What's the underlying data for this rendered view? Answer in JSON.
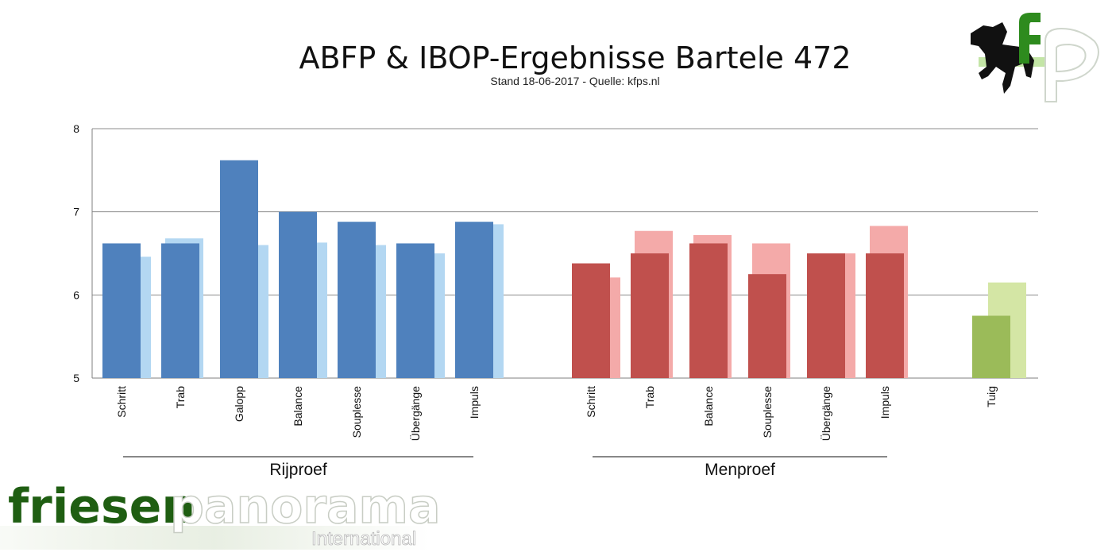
{
  "chart_data": {
    "type": "bar",
    "title": "ABFP & IBOP-Ergebnisse Bartele 472",
    "subtitle": "Stand 18-06-2017 - Quelle: kfps.nl",
    "ylim": [
      5,
      8
    ],
    "yticks": [
      5,
      6,
      7,
      8
    ],
    "grid": true,
    "groups": [
      {
        "label": "Rijproef",
        "color": "#4f81bd",
        "secondary_color": "#b3d7f2",
        "categories": [
          "Schritt",
          "Trab",
          "Galopp",
          "Balance",
          "Souplesse",
          "Übergänge",
          "Impuls"
        ],
        "values": [
          6.62,
          6.62,
          7.62,
          7.0,
          6.88,
          6.62,
          6.88
        ],
        "secondary_values": [
          6.46,
          6.68,
          6.6,
          6.63,
          6.6,
          6.5,
          6.85
        ]
      },
      {
        "label": "Menproef",
        "color": "#c0504d",
        "secondary_color": "#f4aaa9",
        "categories": [
          "Schritt",
          "Trab",
          "Balance",
          "Souplesse",
          "Übergänge",
          "Impuls"
        ],
        "values": [
          6.38,
          6.5,
          6.62,
          6.25,
          6.5,
          6.5
        ],
        "secondary_values": [
          6.21,
          6.77,
          6.72,
          6.62,
          6.5,
          6.83
        ]
      },
      {
        "label": "",
        "color": "#9bbb59",
        "secondary_color": "#d4e6a5",
        "categories": [
          "Tuig"
        ],
        "values": [
          5.75
        ],
        "secondary_values": [
          6.15
        ]
      }
    ]
  },
  "branding": {
    "logo_tr": "kfps",
    "watermark_main_1": "friesen",
    "watermark_main_2": "panorama",
    "watermark_sub": "International",
    "colors": {
      "logo_green": "#2e8b1e",
      "dark_green": "#1f5e12"
    }
  }
}
